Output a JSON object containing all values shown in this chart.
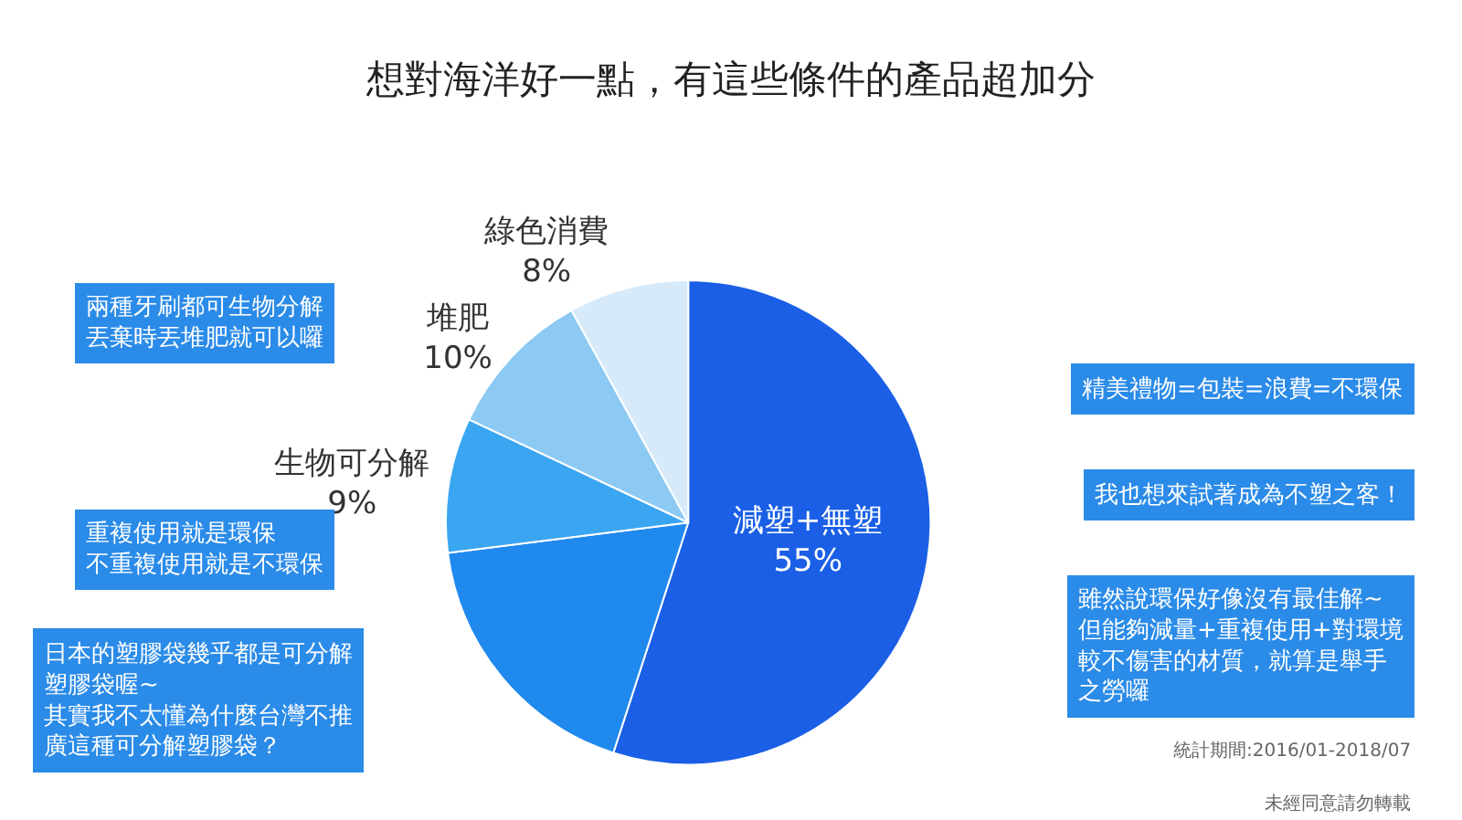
{
  "chart_data": {
    "type": "pie",
    "title": "想對海洋好一點，有這些條件的產品超加分",
    "categories": [
      "減塑+無塑",
      null,
      "生物可分解",
      "堆肥",
      "綠色消費"
    ],
    "values": [
      55,
      18,
      9,
      10,
      8
    ],
    "value_labels": [
      "55%",
      null,
      "9%",
      "10%",
      "8%"
    ],
    "colors": [
      "#1a5fe6",
      "#2089ee",
      "#3aa6f2",
      "#8ccaf4",
      "#d6eafa"
    ],
    "legend": false,
    "annotations": [
      "兩種牙刷都可生物分解丟棄時丟堆肥就可以囉",
      "重複使用就是環保不重複使用就是不環保",
      "日本的塑膠袋幾乎都是可分解塑膠袋喔~其實我不太懂為什麼台灣不推廣這種可分解塑膠袋？",
      "精美禮物=包裝=浪費=不環保",
      "我也想來試著成為不塑之客！",
      "雖然說環保好像沒有最佳解~但能夠減量+重複使用+對環境較不傷害的材質，就算是舉手之勞囉",
      "統計期間:2016/01-2018/07",
      "未經同意請勿轉載"
    ]
  }
}
